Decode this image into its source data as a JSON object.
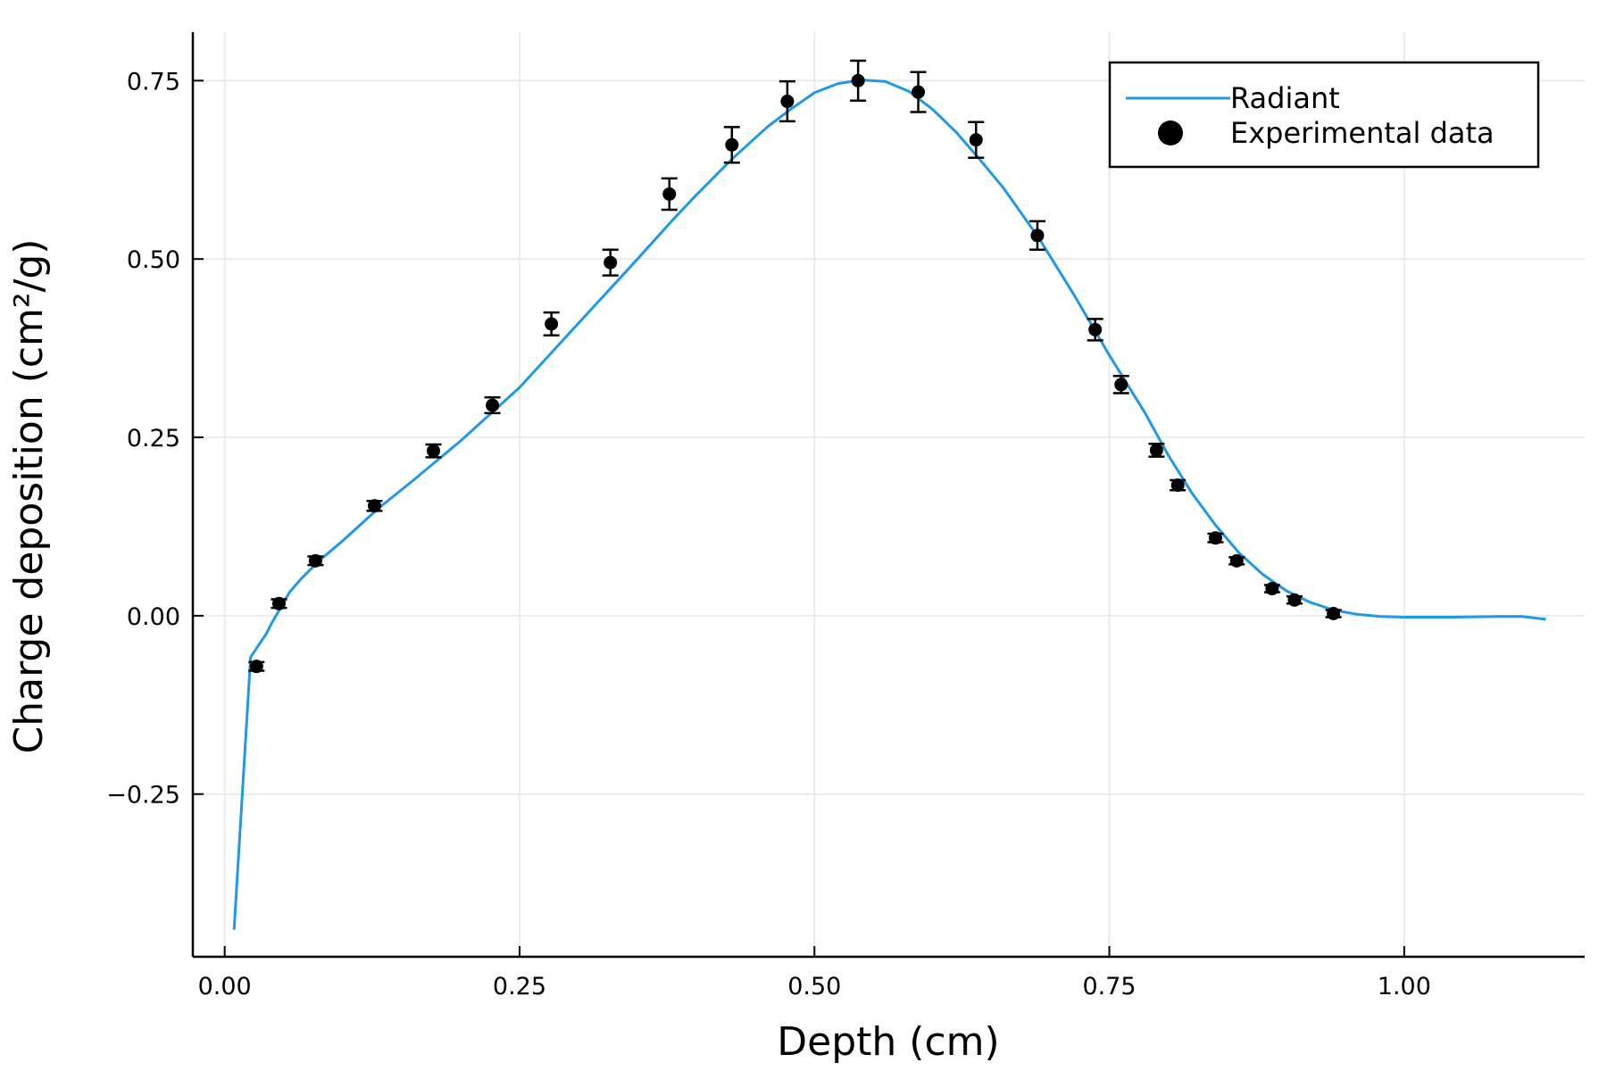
{
  "chart_data": {
    "type": "line",
    "title": "",
    "xlabel": "Depth (cm)",
    "ylabel": "Charge deposition (cm²/g)",
    "xlim": [
      -0.027,
      1.153
    ],
    "ylim": [
      -0.478,
      0.818
    ],
    "x_ticks": [
      {
        "value": 0.0,
        "label": "0.00"
      },
      {
        "value": 0.25,
        "label": "0.25"
      },
      {
        "value": 0.5,
        "label": "0.50"
      },
      {
        "value": 0.75,
        "label": "0.75"
      },
      {
        "value": 1.0,
        "label": "1.00"
      }
    ],
    "y_ticks": [
      {
        "value": -0.25,
        "label": "−0.25"
      },
      {
        "value": 0.0,
        "label": "0.00"
      },
      {
        "value": 0.25,
        "label": "0.25"
      },
      {
        "value": 0.5,
        "label": "0.50"
      },
      {
        "value": 0.75,
        "label": "0.75"
      }
    ],
    "grid": true,
    "legend": {
      "position": "top-right",
      "entries": [
        {
          "label": "Radiant",
          "marker": "line",
          "color": "#1f99e6"
        },
        {
          "label": "Experimental data",
          "marker": "dot",
          "color": "#000000"
        }
      ]
    },
    "series": [
      {
        "name": "Radiant",
        "kind": "line",
        "color": "#1f99e6",
        "x": [
          0.008,
          0.022,
          0.028,
          0.035,
          0.04,
          0.047,
          0.055,
          0.065,
          0.08,
          0.1,
          0.13,
          0.16,
          0.2,
          0.25,
          0.3,
          0.35,
          0.38,
          0.4,
          0.43,
          0.46,
          0.48,
          0.5,
          0.52,
          0.54,
          0.56,
          0.58,
          0.6,
          0.62,
          0.64,
          0.66,
          0.69,
          0.72,
          0.75,
          0.78,
          0.8,
          0.82,
          0.84,
          0.86,
          0.88,
          0.9,
          0.92,
          0.94,
          0.96,
          0.98,
          1.0,
          1.04,
          1.08,
          1.1,
          1.12
        ],
        "y": [
          -0.44,
          -0.058,
          -0.043,
          -0.026,
          -0.01,
          0.01,
          0.033,
          0.052,
          0.077,
          0.105,
          0.15,
          0.19,
          0.245,
          0.32,
          0.41,
          0.5,
          0.555,
          0.59,
          0.64,
          0.685,
          0.71,
          0.733,
          0.746,
          0.751,
          0.749,
          0.735,
          0.71,
          0.678,
          0.64,
          0.6,
          0.53,
          0.45,
          0.365,
          0.285,
          0.225,
          0.172,
          0.127,
          0.088,
          0.058,
          0.035,
          0.019,
          0.008,
          0.002,
          -0.001,
          -0.002,
          -0.002,
          -0.001,
          -0.001,
          -0.005
        ]
      },
      {
        "name": "Experimental data",
        "kind": "scatter",
        "color": "#000000",
        "x": [
          0.027,
          0.046,
          0.077,
          0.127,
          0.177,
          0.227,
          0.277,
          0.327,
          0.377,
          0.43,
          0.477,
          0.537,
          0.588,
          0.637,
          0.689,
          0.738,
          0.76,
          0.79,
          0.808,
          0.84,
          0.858,
          0.888,
          0.907,
          0.94
        ],
        "y": [
          -0.071,
          0.017,
          0.077,
          0.154,
          0.231,
          0.295,
          0.409,
          0.495,
          0.591,
          0.66,
          0.721,
          0.75,
          0.734,
          0.667,
          0.533,
          0.401,
          0.324,
          0.232,
          0.183,
          0.109,
          0.077,
          0.038,
          0.022,
          0.003
        ],
        "error": [
          0.006,
          0.006,
          0.006,
          0.007,
          0.009,
          0.011,
          0.016,
          0.018,
          0.022,
          0.025,
          0.028,
          0.028,
          0.028,
          0.025,
          0.02,
          0.015,
          0.012,
          0.009,
          0.007,
          0.006,
          0.005,
          0.005,
          0.005,
          0.005
        ]
      }
    ]
  }
}
